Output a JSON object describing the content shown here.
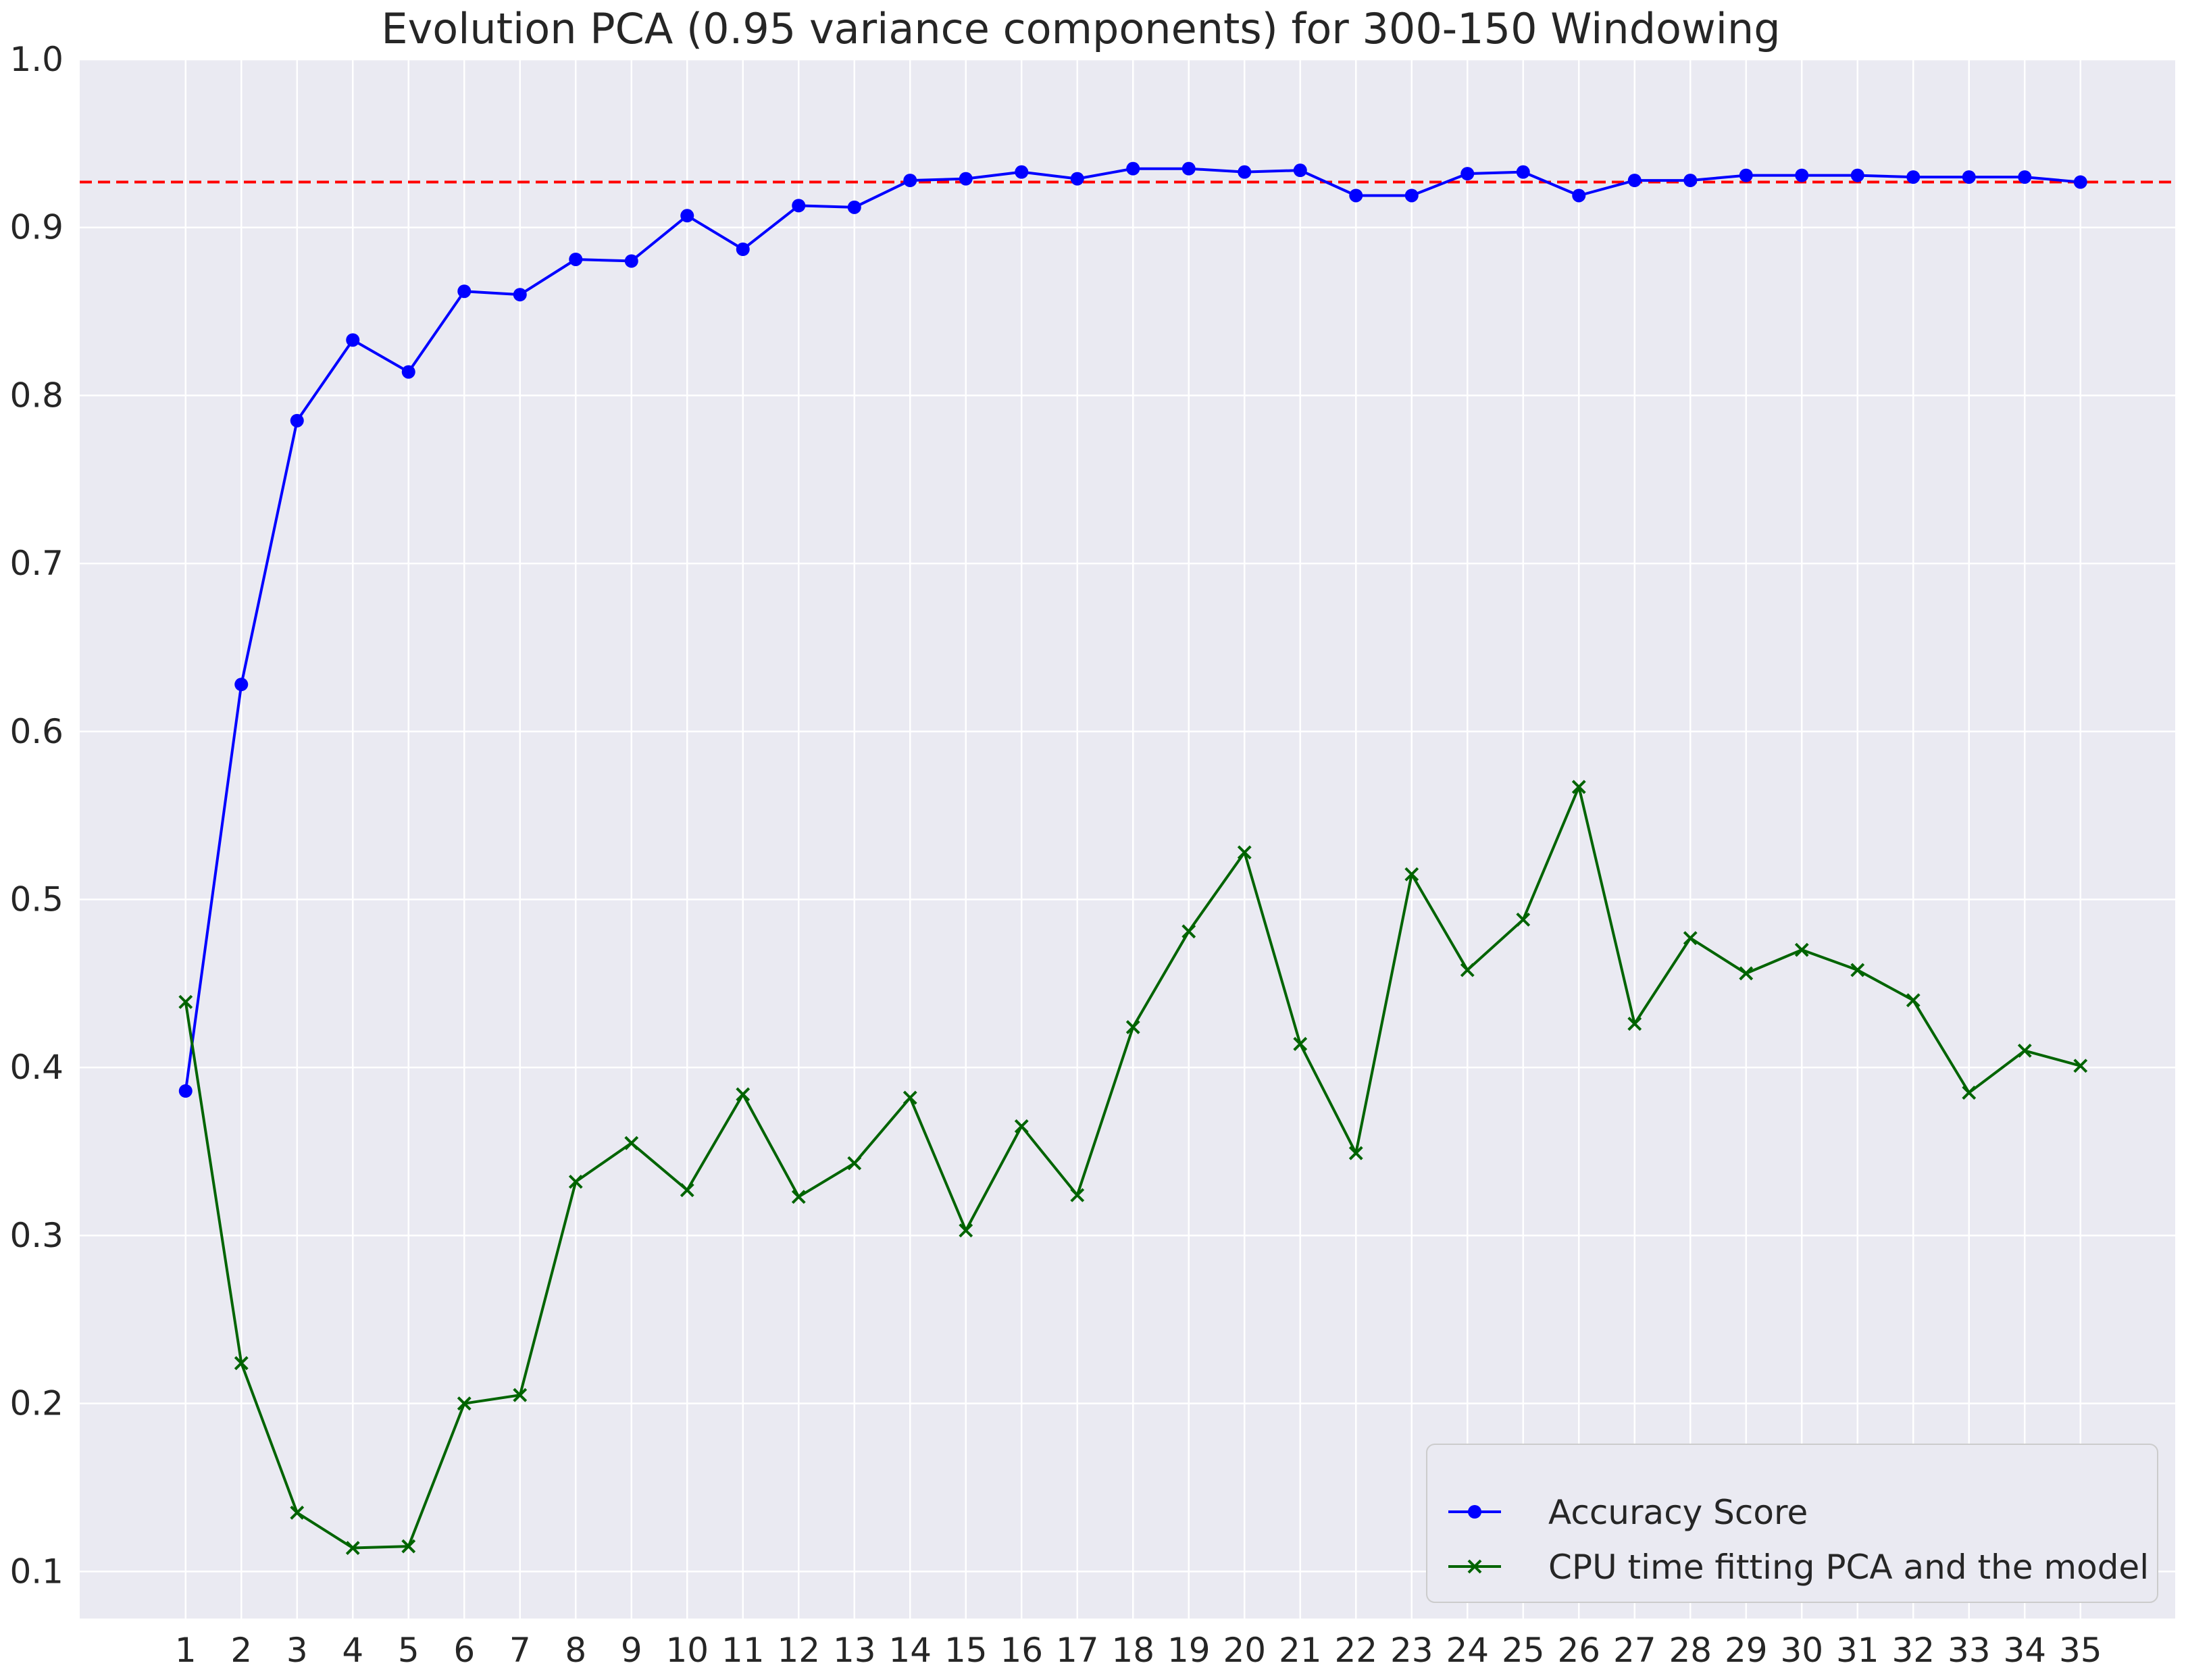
{
  "chart_data": {
    "type": "line",
    "title": "Evolution PCA (0.95 variance components) for 300-150 Windowing",
    "xlabel": "",
    "ylabel": "",
    "x": [
      1,
      2,
      3,
      4,
      5,
      6,
      7,
      8,
      9,
      10,
      11,
      12,
      13,
      14,
      15,
      16,
      17,
      18,
      19,
      20,
      21,
      22,
      23,
      24,
      25,
      26,
      27,
      28,
      29,
      30,
      31,
      32,
      33,
      34,
      35
    ],
    "xlim": [
      -0.9,
      36.7
    ],
    "ylim": [
      0.072,
      1.0
    ],
    "yticks": [
      0.1,
      0.2,
      0.3,
      0.4,
      0.5,
      0.6,
      0.7,
      0.8,
      0.9,
      1.0
    ],
    "ytick_labels": [
      "0.1",
      "0.2",
      "0.3",
      "0.4",
      "0.5",
      "0.6",
      "0.7",
      "0.8",
      "0.9",
      "1.0"
    ],
    "grid": true,
    "legend_position": "bottom-right",
    "series": [
      {
        "name": "Accuracy Score",
        "color": "#0000ff",
        "marker": "circle",
        "values": [
          0.386,
          0.628,
          0.785,
          0.833,
          0.814,
          0.862,
          0.86,
          0.881,
          0.88,
          0.907,
          0.887,
          0.913,
          0.912,
          0.928,
          0.929,
          0.933,
          0.929,
          0.935,
          0.935,
          0.933,
          0.934,
          0.919,
          0.919,
          0.932,
          0.933,
          0.919,
          0.928,
          0.928,
          0.931,
          0.931,
          0.931,
          0.93,
          0.93,
          0.93,
          0.927
        ]
      },
      {
        "name": "CPU time fitting PCA and the model",
        "color": "#006400",
        "marker": "x",
        "values": [
          0.439,
          0.224,
          0.135,
          0.114,
          0.115,
          0.2,
          0.205,
          0.332,
          0.355,
          0.327,
          0.384,
          0.323,
          0.343,
          0.382,
          0.303,
          0.365,
          0.324,
          0.424,
          0.481,
          0.528,
          0.414,
          0.349,
          0.515,
          0.458,
          0.488,
          0.567,
          0.426,
          0.477,
          0.456,
          0.47,
          0.458,
          0.44,
          0.385,
          0.41,
          0.401
        ]
      }
    ],
    "reference_line": {
      "y": 0.927,
      "color": "#ff0000",
      "style": "dashed"
    },
    "colors": {
      "background": "#eaeaf2",
      "grid": "#ffffff",
      "text": "#262626"
    }
  }
}
